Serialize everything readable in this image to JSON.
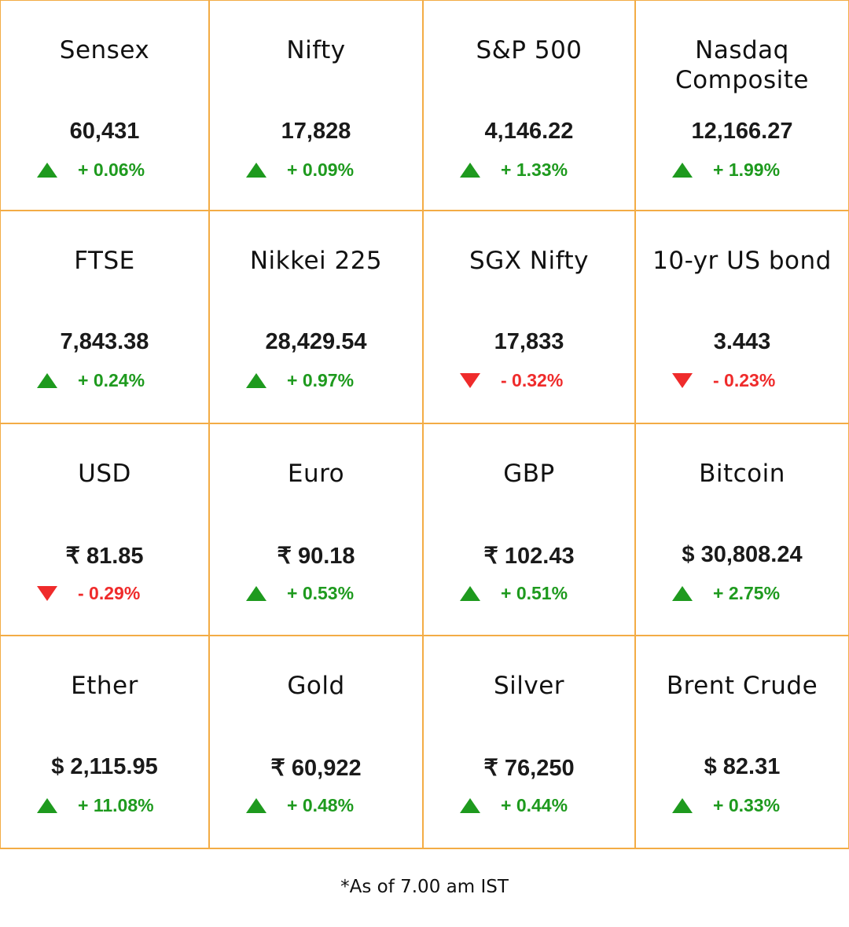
{
  "tiles": [
    {
      "name": "Sensex",
      "value": "60,431",
      "change": "+ 0.06%",
      "direction": "up"
    },
    {
      "name": "Nifty",
      "value": "17,828",
      "change": "+ 0.09%",
      "direction": "up"
    },
    {
      "name": "S&P 500",
      "value": "4,146.22",
      "change": "+ 1.33%",
      "direction": "up"
    },
    {
      "name": "Nasdaq Composite",
      "value": "12,166.27",
      "change": "+ 1.99%",
      "direction": "up"
    },
    {
      "name": "FTSE",
      "value": "7,843.38",
      "change": "+ 0.24%",
      "direction": "up"
    },
    {
      "name": "Nikkei 225",
      "value": "28,429.54",
      "change": "+ 0.97%",
      "direction": "up"
    },
    {
      "name": "SGX Nifty",
      "value": "17,833",
      "change": "- 0.32%",
      "direction": "down"
    },
    {
      "name": "10-yr US bond",
      "value": "3.443",
      "change": "- 0.23%",
      "direction": "down"
    },
    {
      "name": "USD",
      "value": "₹ 81.85",
      "change": "- 0.29%",
      "direction": "down"
    },
    {
      "name": "Euro",
      "value": "₹ 90.18",
      "change": "+ 0.53%",
      "direction": "up"
    },
    {
      "name": "GBP",
      "value": "₹ 102.43",
      "change": "+ 0.51%",
      "direction": "up"
    },
    {
      "name": "Bitcoin",
      "value": "$ 30,808.24",
      "change": "+ 2.75%",
      "direction": "up"
    },
    {
      "name": "Ether",
      "value": "$ 2,115.95",
      "change": "+ 11.08%",
      "direction": "up"
    },
    {
      "name": "Gold",
      "value": "₹ 60,922",
      "change": "+ 0.48%",
      "direction": "up"
    },
    {
      "name": "Silver",
      "value": "₹  76,250",
      "change": "+ 0.44%",
      "direction": "up"
    },
    {
      "name": "Brent Crude",
      "value": "$ 82.31",
      "change": "+ 0.33%",
      "direction": "up"
    }
  ],
  "colors": {
    "border": "#f3ac45",
    "up": "#1e9a1e",
    "down": "#ef2b2b"
  },
  "footer": {
    "note": "*As of 7.00  am IST"
  }
}
